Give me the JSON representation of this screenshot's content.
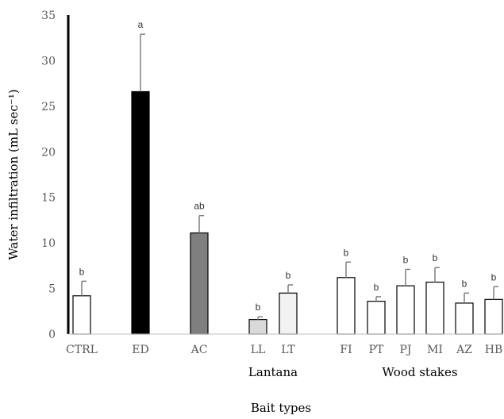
{
  "chart_data": {
    "type": "bar",
    "categories": [
      "CTRL",
      "ED",
      "AC",
      "LL",
      "LT",
      "FI",
      "PT",
      "PJ",
      "MI",
      "AZ",
      "HB"
    ],
    "values": [
      4.2,
      26.6,
      11.1,
      1.6,
      4.5,
      6.2,
      3.6,
      5.3,
      5.7,
      3.4,
      3.8
    ],
    "errors": [
      1.6,
      6.3,
      1.9,
      0.3,
      0.9,
      1.7,
      0.5,
      1.8,
      1.6,
      1.1,
      1.4
    ],
    "significance": [
      "b",
      "a",
      "ab",
      "b",
      "b",
      "b",
      "b",
      "b",
      "b",
      "b",
      "b"
    ],
    "bar_colors": [
      "#ffffff",
      "#000000",
      "#7f7f7f",
      "#d9d9d9",
      "#f2f2f2",
      "#ffffff",
      "#ffffff",
      "#ffffff",
      "#ffffff",
      "#ffffff",
      "#ffffff"
    ],
    "groups": [
      {
        "label": "Lantana",
        "categories": [
          "LL",
          "LT"
        ]
      },
      {
        "label": "Wood stakes",
        "categories": [
          "FI",
          "PT",
          "PJ",
          "MI",
          "AZ",
          "HB"
        ]
      }
    ],
    "title": "",
    "xlabel": "Bait types",
    "ylabel": "Water infiltration (mL sec⁻¹)",
    "ylim": [
      0,
      35
    ],
    "yticks": [
      0,
      5,
      10,
      15,
      20,
      25,
      30,
      35
    ],
    "grid": false,
    "legend": "none"
  }
}
